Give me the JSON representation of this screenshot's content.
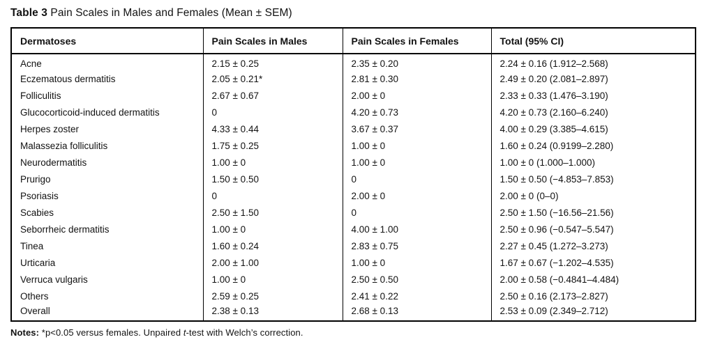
{
  "title": {
    "label": "Table 3",
    "text": "Pain Scales in Males and Females (Mean ± SEM)"
  },
  "table": {
    "headers": [
      "Dermatoses",
      "Pain Scales in Males",
      "Pain Scales in Females",
      "Total (95% CI)"
    ],
    "rows": [
      [
        "Acne",
        "2.15 ± 0.25",
        "2.35 ± 0.20",
        "2.24 ± 0.16 (1.912–2.568)"
      ],
      [
        "Eczematous dermatitis",
        "2.05 ± 0.21*",
        "2.81 ± 0.30",
        "2.49 ± 0.20 (2.081–2.897)"
      ],
      [
        "Folliculitis",
        "2.67 ± 0.67",
        "2.00 ± 0",
        "2.33 ± 0.33 (1.476–3.190)"
      ],
      [
        "Glucocorticoid-induced dermatitis",
        "0",
        "4.20 ± 0.73",
        "4.20 ± 0.73 (2.160–6.240)"
      ],
      [
        "Herpes zoster",
        "4.33 ± 0.44",
        "3.67 ± 0.37",
        "4.00 ± 0.29 (3.385–4.615)"
      ],
      [
        "Malassezia folliculitis",
        "1.75 ± 0.25",
        "1.00 ± 0",
        "1.60 ± 0.24 (0.9199–2.280)"
      ],
      [
        "Neurodermatitis",
        "1.00 ± 0",
        "1.00 ± 0",
        "1.00 ± 0 (1.000–1.000)"
      ],
      [
        "Prurigo",
        "1.50 ± 0.50",
        "0",
        "1.50 ± 0.50 (−4.853–7.853)"
      ],
      [
        "Psoriasis",
        "0",
        "2.00 ± 0",
        "2.00 ± 0 (0–0)"
      ],
      [
        "Scabies",
        "2.50 ± 1.50",
        "0",
        "2.50 ± 1.50 (−16.56–21.56)"
      ],
      [
        "Seborrheic dermatitis",
        "1.00 ± 0",
        "4.00 ± 1.00",
        "2.50 ± 0.96 (−0.547–5.547)"
      ],
      [
        "Tinea",
        "1.60 ± 0.24",
        "2.83 ± 0.75",
        "2.27 ± 0.45 (1.272–3.273)"
      ],
      [
        "Urticaria",
        "2.00 ± 1.00",
        "1.00 ± 0",
        "1.67 ± 0.67 (−1.202–4.535)"
      ],
      [
        "Verruca vulgaris",
        "1.00 ± 0",
        "2.50 ± 0.50",
        "2.00 ± 0.58 (−0.4841–4.484)"
      ],
      [
        "Others",
        "2.59 ± 0.25",
        "2.41 ± 0.22",
        "2.50 ± 0.16 (2.173–2.827)"
      ],
      [
        "Overall",
        "2.38 ± 0.13",
        "2.68 ± 0.13",
        "2.53 ± 0.09 (2.349–2.712)"
      ]
    ]
  },
  "notes": {
    "label": "Notes:",
    "part1": "*p<0.05 versus females. Unpaired ",
    "italic": "t",
    "part2": "-test with Welch’s correction."
  }
}
